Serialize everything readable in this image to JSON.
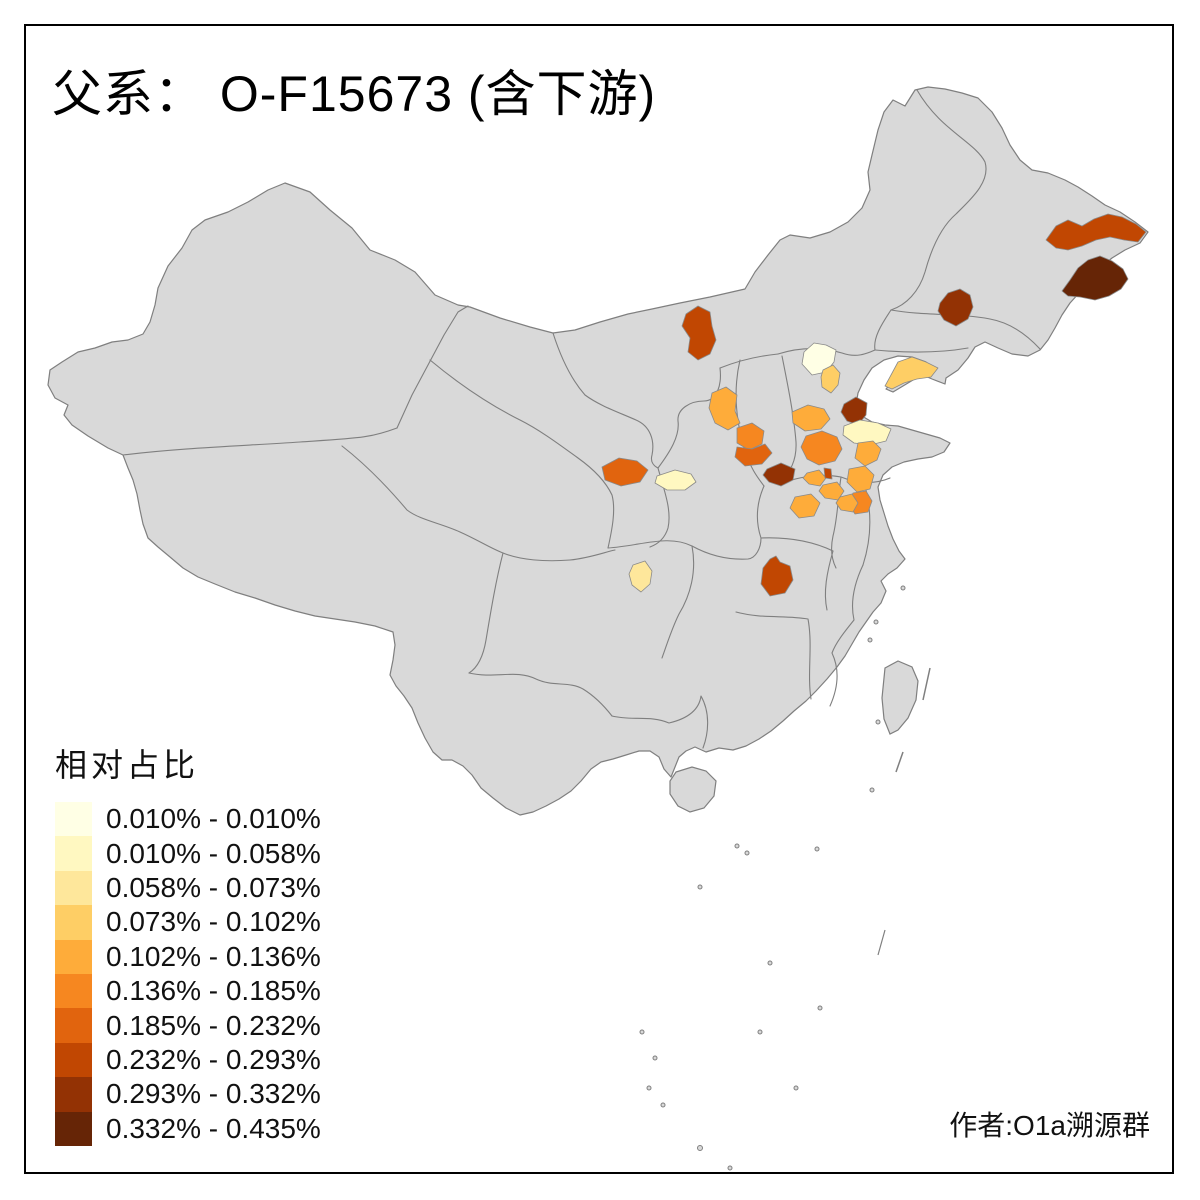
{
  "title": "父系： O-F15673 (含下游)",
  "attribution": "作者:O1a溯源群",
  "palette": [
    "#FFFFE5",
    "#FFF8C1",
    "#FEE79B",
    "#FECE65",
    "#FEAC3A",
    "#F68720",
    "#E1640E",
    "#C14702",
    "#933204",
    "#662506"
  ],
  "legend": {
    "title": "相对占比",
    "labels": [
      "0.010% - 0.010%",
      "0.010% - 0.058%",
      "0.058% - 0.073%",
      "0.073% - 0.102%",
      "0.102% - 0.136%",
      "0.136% - 0.185%",
      "0.185% - 0.232%",
      "0.232% - 0.293%",
      "0.293% - 0.332%",
      "0.332% - 0.435%"
    ]
  },
  "map": {
    "background": "#FFFFFF",
    "land_fill": "#D9D9D9",
    "border_color": "#7F7F7F",
    "regions": [
      {
        "id": "heilongjiang-north-band",
        "bin": 8
      },
      {
        "id": "heilongjiang-southeast",
        "bin": 10
      },
      {
        "id": "jilin-central",
        "bin": 9
      },
      {
        "id": "inner-mongolia-west",
        "bin": 8
      },
      {
        "id": "beijing",
        "bin": 1
      },
      {
        "id": "tianjin",
        "bin": 4
      },
      {
        "id": "bohai-northwest",
        "bin": 9
      },
      {
        "id": "liaodong-peninsula",
        "bin": 4
      },
      {
        "id": "hebei-south",
        "bin": 5
      },
      {
        "id": "hebei-shijiazhuang",
        "bin": 6
      },
      {
        "id": "shandong-north-pale",
        "bin": 2
      },
      {
        "id": "shandong-central",
        "bin": 5
      },
      {
        "id": "zhengzhou",
        "bin": 9
      },
      {
        "id": "henan-east-a",
        "bin": 5
      },
      {
        "id": "henan-east-b",
        "bin": 5
      },
      {
        "id": "jiangsu-north",
        "bin": 5
      },
      {
        "id": "jiangsu-central",
        "bin": 6
      },
      {
        "id": "henan-south",
        "bin": 5
      },
      {
        "id": "hebi-small",
        "bin": 8
      },
      {
        "id": "shaanxi-north",
        "bin": 5
      },
      {
        "id": "shanxi-central",
        "bin": 6
      },
      {
        "id": "shanxi-south",
        "bin": 7
      },
      {
        "id": "lanzhou",
        "bin": 7
      },
      {
        "id": "gansu-east-pale",
        "bin": 2
      },
      {
        "id": "chengdu",
        "bin": 3
      },
      {
        "id": "wuhan",
        "bin": 8
      },
      {
        "id": "shandong-southwest",
        "bin": 5
      }
    ]
  },
  "chart_data": {
    "type": "heatmap",
    "subtype": "choropleth-map-of-china",
    "title": "父系： O-F15673 (含下游)",
    "legend_title": "相对占比",
    "bin_labels": [
      "0.010% - 0.010%",
      "0.010% - 0.058%",
      "0.058% - 0.073%",
      "0.073% - 0.102%",
      "0.102% - 0.136%",
      "0.136% - 0.185%",
      "0.185% - 0.232%",
      "0.232% - 0.293%",
      "0.293% - 0.332%",
      "0.332% - 0.435%"
    ],
    "bin_colors": [
      "#FFFFE5",
      "#FFF8C1",
      "#FEE79B",
      "#FECE65",
      "#FEAC3A",
      "#F68720",
      "#E1640E",
      "#C14702",
      "#933204",
      "#662506"
    ],
    "region_bins": {
      "heilongjiang-north-band": 8,
      "heilongjiang-southeast": 10,
      "jilin-central": 9,
      "inner-mongolia-west": 8,
      "beijing": 1,
      "tianjin": 4,
      "bohai-northwest": 9,
      "liaodong-peninsula": 4,
      "hebei-south": 5,
      "hebei-shijiazhuang": 6,
      "shandong-north-pale": 2,
      "shandong-central": 5,
      "zhengzhou": 9,
      "henan-east-a": 5,
      "henan-east-b": 5,
      "jiangsu-north": 5,
      "jiangsu-central": 6,
      "henan-south": 5,
      "hebi-small": 8,
      "shaanxi-north": 5,
      "shanxi-central": 6,
      "shanxi-south": 7,
      "lanzhou": 7,
      "gansu-east-pale": 2,
      "chengdu": 3,
      "wuhan": 8,
      "shandong-southwest": 5
    }
  }
}
